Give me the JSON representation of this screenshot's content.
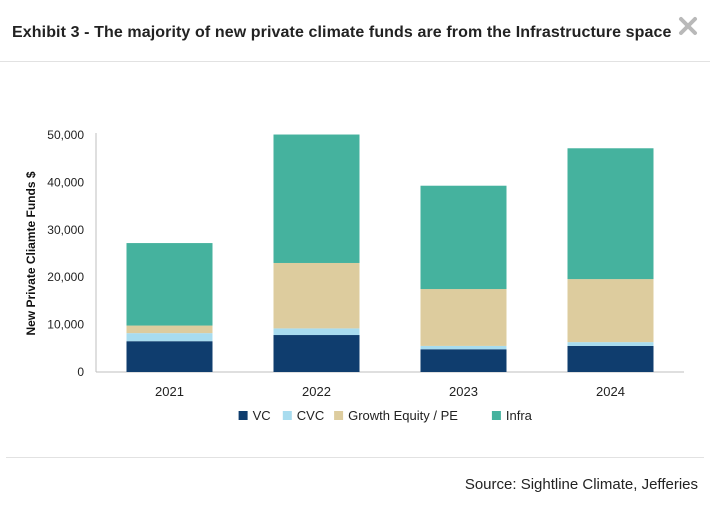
{
  "header": {
    "title": "Exhibit 3 - The majority of new private climate funds are from the Infrastructure space",
    "close_icon": "close-icon"
  },
  "footer": {
    "source": "Source: Sightline Climate, Jefferies"
  },
  "chart_data": {
    "type": "bar",
    "stacked": true,
    "categories": [
      "2021",
      "2022",
      "2023",
      "2024"
    ],
    "series": [
      {
        "name": "VC",
        "color": "#0f3d6e",
        "values": [
          6500,
          7800,
          4800,
          5500
        ]
      },
      {
        "name": "CVC",
        "color": "#a8dcef",
        "values": [
          1700,
          1400,
          700,
          800
        ]
      },
      {
        "name": "Growth Equity / PE",
        "color": "#ddcc9e",
        "values": [
          1600,
          13800,
          12000,
          13300
        ]
      },
      {
        "name": "Infra",
        "color": "#45b29e",
        "values": [
          17400,
          27100,
          21800,
          27600
        ]
      }
    ],
    "ylabel": "New Private Cliamte Funds $",
    "xlabel": "",
    "ylim": [
      0,
      50000
    ],
    "yticks": [
      0,
      10000,
      20000,
      30000,
      40000,
      50000
    ],
    "ytick_labels": [
      "0",
      "10,000",
      "20,000",
      "30,000",
      "40,000",
      "50,000"
    ],
    "legend_position": "bottom",
    "grid": false
  }
}
